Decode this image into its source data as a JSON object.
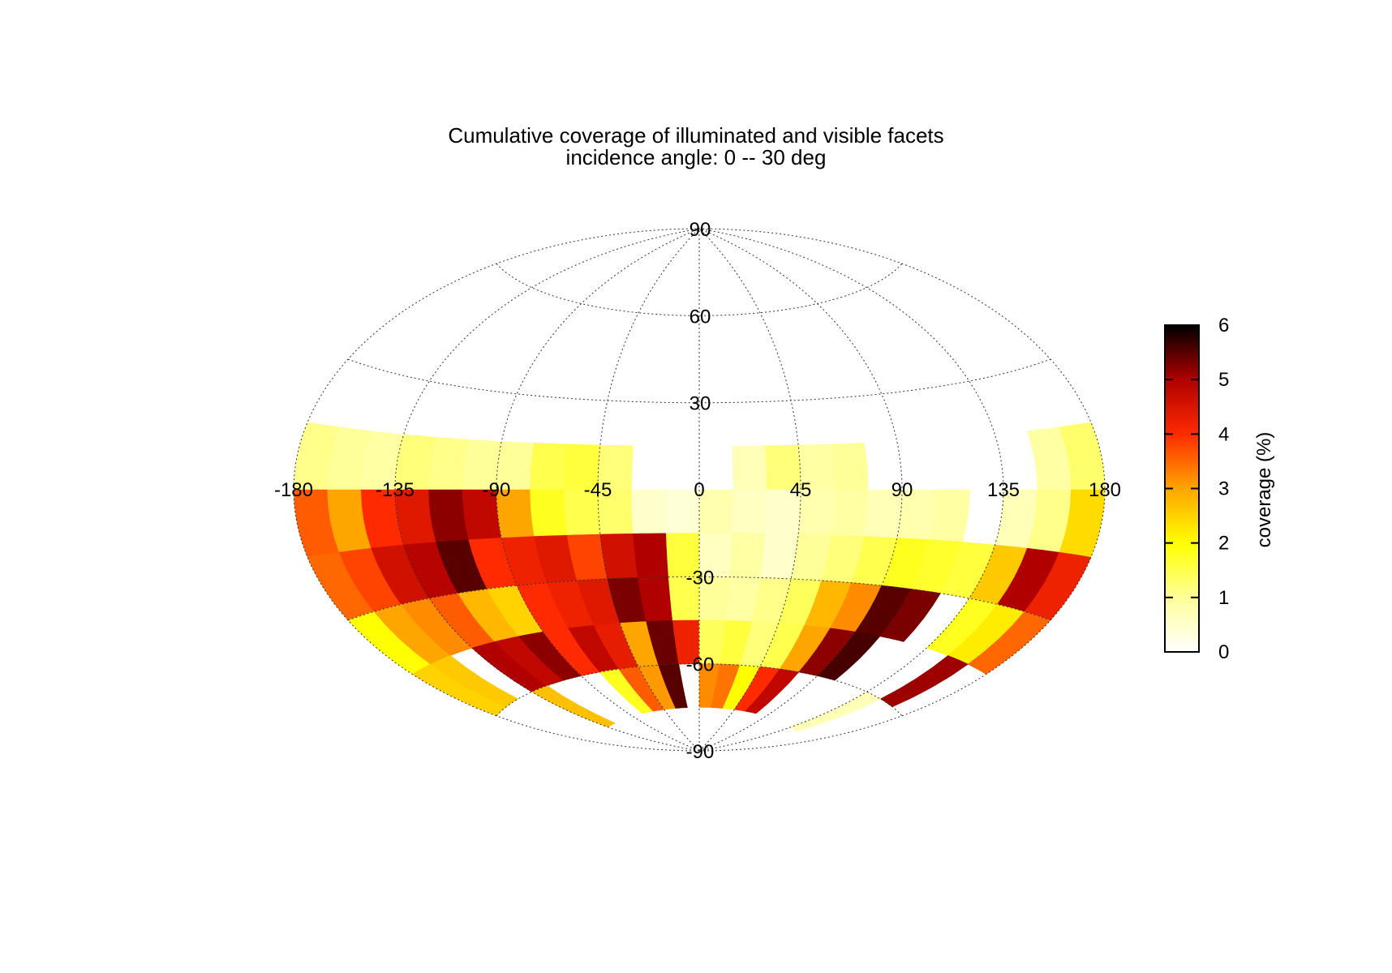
{
  "title_line1": "Cumulative coverage of illuminated and visible facets",
  "title_line2": "incidence angle:  0 -- 30 deg",
  "chart_data": {
    "type": "heatmap",
    "projection": "aitoff",
    "title": "Cumulative coverage of illuminated and visible facets",
    "subtitle": "incidence angle:  0 -- 30 deg",
    "x_ticks": [
      "-180",
      "-135",
      "-90",
      "-45",
      "0",
      "45",
      "90",
      "135",
      "180"
    ],
    "y_ticks": [
      "90",
      "60",
      "30",
      "-30",
      "-60",
      "-90"
    ],
    "xlim": [
      -180,
      180
    ],
    "ylim": [
      -90,
      90
    ],
    "grid": true,
    "colorbar": {
      "label": "coverage (%)",
      "ticks": [
        "0",
        "1",
        "2",
        "3",
        "4",
        "5",
        "6"
      ],
      "range": [
        0,
        6
      ],
      "colors": [
        "#ffffff",
        "#ffff99",
        "#ffff00",
        "#ffa500",
        "#ff2a00",
        "#b00000",
        "#000000"
      ]
    },
    "cell_size_deg": [
      15,
      15
    ],
    "latitude_bands": [
      15,
      0,
      -15,
      -30,
      -45,
      -60
    ],
    "longitude_columns": [
      -180,
      -165,
      -150,
      -135,
      -120,
      -105,
      -90,
      -75,
      -60,
      -45,
      -30,
      -15,
      0,
      15,
      30,
      45,
      60,
      75,
      90,
      105,
      120,
      135,
      150,
      165
    ],
    "values": [
      [
        1.1,
        1.0,
        0.9,
        1.2,
        1.1,
        1.0,
        1.0,
        1.5,
        1.6,
        1.2,
        0.0,
        0.0,
        0.0,
        0.7,
        1.2,
        0.9,
        1.0,
        0.0,
        0.0,
        0.0,
        0.0,
        0.0,
        0.9,
        1.3
      ],
      [
        3.6,
        3.0,
        4.0,
        4.4,
        5.2,
        4.8,
        3.0,
        1.8,
        1.5,
        1.3,
        0.5,
        0.4,
        0.8,
        0.6,
        0.5,
        0.8,
        0.9,
        0.7,
        0.8,
        0.9,
        0.0,
        0.7,
        1.1,
        2.4
      ],
      [
        3.5,
        3.8,
        4.6,
        4.9,
        5.5,
        4.0,
        4.2,
        4.4,
        3.8,
        4.6,
        5.0,
        1.6,
        0.6,
        0.9,
        0.5,
        1.0,
        1.2,
        1.5,
        1.8,
        1.7,
        1.6,
        2.6,
        5.0,
        4.2
      ],
      [
        2.0,
        3.0,
        3.2,
        3.6,
        2.8,
        2.5,
        4.0,
        4.2,
        4.4,
        5.3,
        5.0,
        1.5,
        1.0,
        0.9,
        1.1,
        1.4,
        2.8,
        3.2,
        5.5,
        5.3,
        0.0,
        1.8,
        2.2,
        3.5
      ],
      [
        2.5,
        2.6,
        0.0,
        5.0,
        4.8,
        5.2,
        4.0,
        4.8,
        4.3,
        3.0,
        5.4,
        4.2,
        1.4,
        1.6,
        1.2,
        1.5,
        3.0,
        5.2,
        5.6,
        0.0,
        0.0,
        0.0,
        5.1,
        0.0
      ],
      [
        0.0,
        0.0,
        0.0,
        2.7,
        0.0,
        0.0,
        0.0,
        1.8,
        3.6,
        3.1,
        5.5,
        0.0,
        3.2,
        3.4,
        2.0,
        4.0,
        4.8,
        0.0,
        0.0,
        0.0,
        0.0,
        0.7,
        0.0,
        0.0
      ]
    ]
  }
}
